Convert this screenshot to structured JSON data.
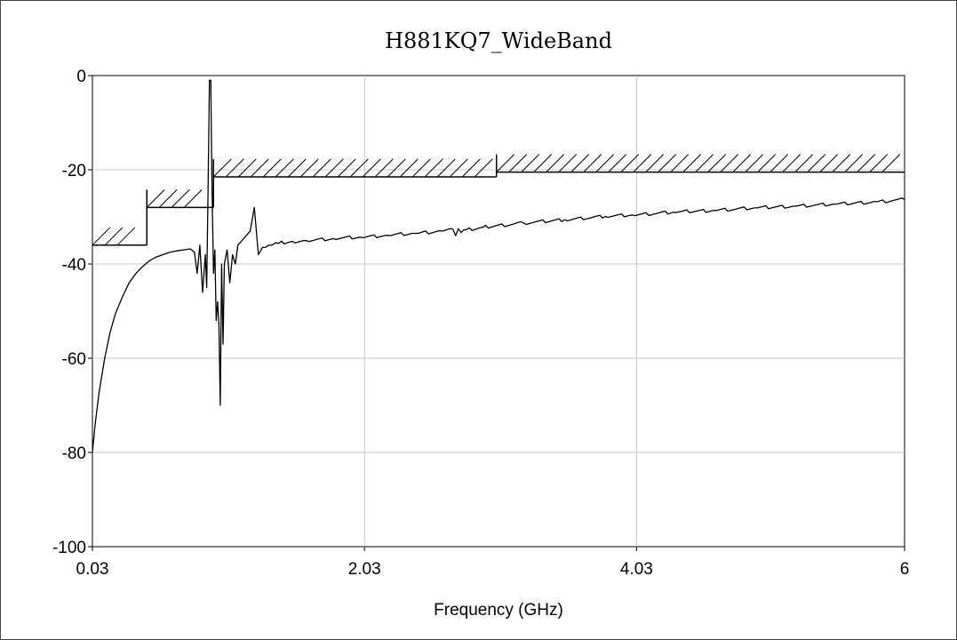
{
  "chart_data": {
    "type": "line",
    "title": "H881KQ7_WideBand",
    "xlabel": "Frequency (GHz)",
    "ylabel": "",
    "xlim": [
      0.03,
      6
    ],
    "ylim": [
      -100,
      0
    ],
    "x_ticks": [
      {
        "value": 0.03,
        "label": "0.03"
      },
      {
        "value": 2.03,
        "label": "2.03"
      },
      {
        "value": 4.03,
        "label": "4.03"
      },
      {
        "value": 6,
        "label": "6"
      }
    ],
    "y_ticks": [
      {
        "value": 0,
        "label": "0"
      },
      {
        "value": -20,
        "label": "-20"
      },
      {
        "value": -40,
        "label": "-40"
      },
      {
        "value": -60,
        "label": "-60"
      },
      {
        "value": -80,
        "label": "-80"
      },
      {
        "value": -100,
        "label": "-100"
      }
    ],
    "grid": true,
    "legend": "none",
    "series": [
      {
        "color": "#000000",
        "x": [
          0.03,
          0.05,
          0.08,
          0.12,
          0.16,
          0.2,
          0.25,
          0.3,
          0.35,
          0.4,
          0.45,
          0.5,
          0.55,
          0.6,
          0.65,
          0.7,
          0.75,
          0.78,
          0.8,
          0.82,
          0.84,
          0.86,
          0.87,
          0.88,
          0.89,
          0.9,
          0.91,
          0.92,
          0.93,
          0.94,
          0.95,
          0.96,
          0.97,
          0.98,
          0.99,
          1.0,
          1.02,
          1.04,
          1.06,
          1.08,
          1.1,
          1.13,
          1.16,
          1.19,
          1.22,
          1.25,
          1.28,
          1.3,
          1.35,
          1.4,
          1.5,
          1.6,
          1.8,
          2.0,
          2.2,
          2.4,
          2.6,
          2.68,
          2.7,
          2.72,
          2.74,
          2.78,
          2.9,
          3.2,
          3.5,
          3.8,
          4.0,
          4.3,
          4.6,
          4.9,
          5.2,
          5.5,
          5.8,
          6.0
        ],
        "y": [
          -80,
          -74,
          -67,
          -60,
          -54.5,
          -50.5,
          -47,
          -44,
          -42,
          -40.5,
          -39.3,
          -38.5,
          -38,
          -37.5,
          -37.2,
          -37,
          -36.8,
          -37.5,
          -42,
          -36,
          -46,
          -38,
          -45,
          -25,
          -1,
          -1,
          -25,
          -42,
          -37,
          -52,
          -48,
          -53,
          -70,
          -40,
          -57,
          -40,
          -37,
          -44,
          -38,
          -40,
          -36,
          -35,
          -34,
          -33,
          -28,
          -38,
          -36.5,
          -36.5,
          -36,
          -35.6,
          -35.2,
          -35,
          -34.6,
          -34.3,
          -33.9,
          -33.5,
          -33,
          -32.6,
          -34,
          -32.5,
          -33.3,
          -32.7,
          -32.2,
          -31.3,
          -30.6,
          -29.9,
          -29.6,
          -29,
          -28.6,
          -28.1,
          -27.7,
          -27.3,
          -26.8,
          -26.3
        ]
      }
    ],
    "limit_lines": [
      {
        "x_start": 0.03,
        "x_end": 0.43,
        "y": -36,
        "hatched": true
      },
      {
        "x_start": 0.43,
        "x_end": 0.92,
        "y": -28,
        "hatched": true
      },
      {
        "x_start": 0.92,
        "x_end": 3.0,
        "y": -21.5,
        "hatched": true
      },
      {
        "x_start": 3.0,
        "x_end": 6.0,
        "y": -20.5,
        "hatched": true
      }
    ]
  }
}
